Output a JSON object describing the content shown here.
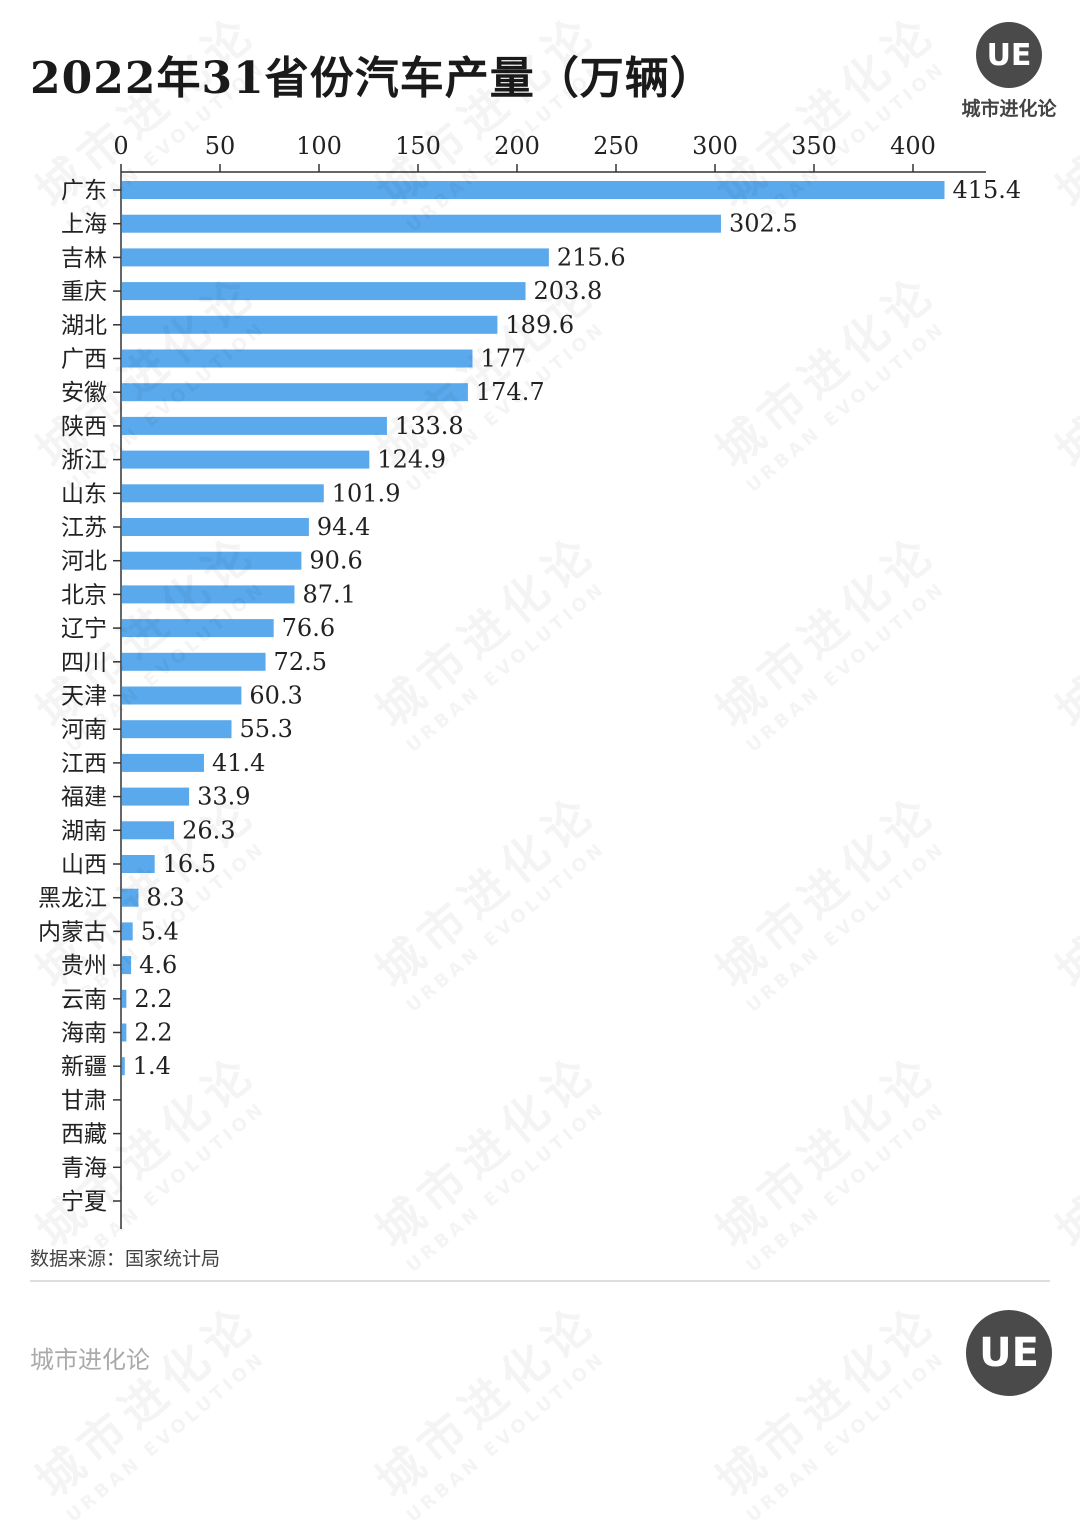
{
  "header": {
    "title": "2022年31省份汽车产量（万辆）",
    "logo_mark": "UE",
    "logo_text": "城市进化论"
  },
  "footer": {
    "source": "数据来源：国家统计局",
    "brand": "城市进化论",
    "logo_mark": "UE"
  },
  "watermark": {
    "main": "城市进化论",
    "sub": "URBAN EVOLUTION"
  },
  "colors": {
    "bar": "#5aa9ec",
    "axis": "#333333",
    "text": "#222222"
  },
  "chart_data": {
    "type": "bar",
    "orientation": "horizontal",
    "title": "2022年31省份汽车产量（万辆）",
    "xlabel": "",
    "ylabel": "",
    "xlim": [
      0,
      420
    ],
    "x_ticks": [
      0,
      50,
      100,
      150,
      200,
      250,
      300,
      350,
      400
    ],
    "x_axis_position": "top",
    "grid": false,
    "categories": [
      "广东",
      "上海",
      "吉林",
      "重庆",
      "湖北",
      "广西",
      "安徽",
      "陕西",
      "浙江",
      "山东",
      "江苏",
      "河北",
      "北京",
      "辽宁",
      "四川",
      "天津",
      "河南",
      "江西",
      "福建",
      "湖南",
      "山西",
      "黑龙江",
      "内蒙古",
      "贵州",
      "云南",
      "海南",
      "新疆",
      "甘肃",
      "西藏",
      "青海",
      "宁夏"
    ],
    "values": [
      415.4,
      302.5,
      215.6,
      203.8,
      189.6,
      177,
      174.7,
      133.8,
      124.9,
      101.9,
      94.4,
      90.6,
      87.1,
      76.6,
      72.5,
      60.3,
      55.3,
      41.4,
      33.9,
      26.3,
      16.5,
      8.3,
      5.4,
      4.6,
      2.2,
      2.2,
      1.4,
      null,
      null,
      null,
      null
    ],
    "value_labels": [
      "415.4",
      "302.5",
      "215.6",
      "203.8",
      "189.6",
      "177",
      "174.7",
      "133.8",
      "124.9",
      "101.9",
      "94.4",
      "90.6",
      "87.1",
      "76.6",
      "72.5",
      "60.3",
      "55.3",
      "41.4",
      "33.9",
      "26.3",
      "16.5",
      "8.3",
      "5.4",
      "4.6",
      "2.2",
      "2.2",
      "1.4",
      "",
      "",
      "",
      ""
    ]
  }
}
